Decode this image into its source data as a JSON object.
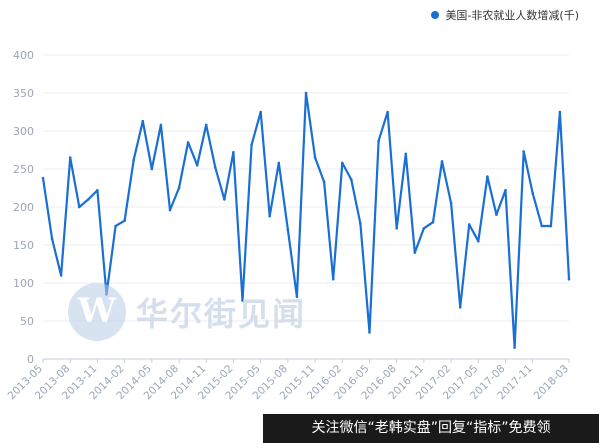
{
  "legend": {
    "label": "美国-非农就业人数增减(千)",
    "color": "#1a6fd4"
  },
  "watermark": {
    "text": "华尔街见闻",
    "logo_letter": "W"
  },
  "footer": {
    "text": "关注微信“老韩实盘”回复“指标”免费领"
  },
  "chart_data": {
    "type": "line",
    "title": "",
    "xlabel": "",
    "ylabel": "",
    "ylim": [
      0,
      400
    ],
    "yticks": [
      0,
      50,
      100,
      150,
      200,
      250,
      300,
      350,
      400
    ],
    "grid": true,
    "legend_position": "top-right",
    "x": [
      "2013-05",
      "2013-06",
      "2013-07",
      "2013-08",
      "2013-09",
      "2013-10",
      "2013-11",
      "2013-12",
      "2014-01",
      "2014-02",
      "2014-03",
      "2014-04",
      "2014-05",
      "2014-06",
      "2014-07",
      "2014-08",
      "2014-09",
      "2014-10",
      "2014-11",
      "2014-12",
      "2015-01",
      "2015-02",
      "2015-03",
      "2015-04",
      "2015-05",
      "2015-06",
      "2015-07",
      "2015-08",
      "2015-09",
      "2015-10",
      "2015-11",
      "2015-12",
      "2016-01",
      "2016-02",
      "2016-03",
      "2016-04",
      "2016-05",
      "2016-06",
      "2016-07",
      "2016-08",
      "2016-09",
      "2016-10",
      "2016-11",
      "2016-12",
      "2017-01",
      "2017-02",
      "2017-03",
      "2017-04",
      "2017-05",
      "2017-06",
      "2017-07",
      "2017-08",
      "2017-09",
      "2017-10",
      "2017-11",
      "2017-12",
      "2018-01",
      "2018-02",
      "2018-03"
    ],
    "xticks": [
      "2013-05",
      "2013-08",
      "2013-11",
      "2014-02",
      "2014-05",
      "2014-08",
      "2014-11",
      "2015-02",
      "2015-05",
      "2015-08",
      "2015-11",
      "2016-02",
      "2016-05",
      "2016-08",
      "2016-11",
      "2017-02",
      "2017-05",
      "2017-08",
      "2017-11",
      "2018-03"
    ],
    "series": [
      {
        "name": "美国-非农就业人数增减(千)",
        "color": "#1a6fd4",
        "values": [
          238,
          158,
          110,
          265,
          200,
          210,
          222,
          85,
          175,
          182,
          262,
          313,
          250,
          308,
          196,
          225,
          285,
          255,
          308,
          252,
          210,
          272,
          77,
          282,
          325,
          188,
          258,
          170,
          82,
          350,
          265,
          233,
          105,
          258,
          236,
          178,
          35,
          287,
          325,
          172,
          270,
          140,
          172,
          180,
          260,
          205,
          68,
          177,
          155,
          240,
          190,
          222,
          15,
          273,
          218,
          175,
          175,
          325,
          105
        ]
      }
    ]
  }
}
